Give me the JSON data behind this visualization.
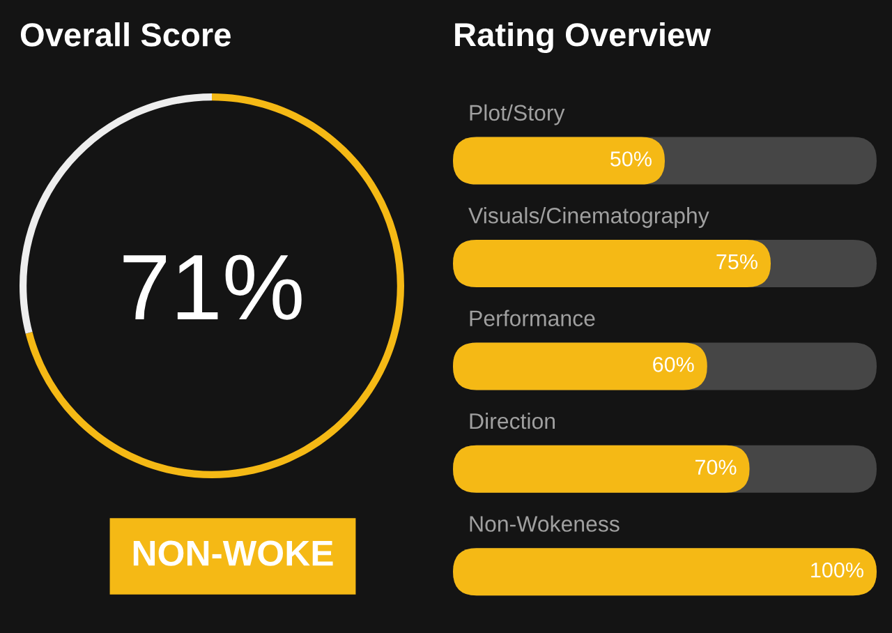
{
  "chart_data": [
    {
      "type": "donut",
      "title": "Overall Score",
      "categories": [
        null,
        null
      ],
      "values": [
        71,
        29
      ],
      "colors": [
        "#f5b915",
        "#eeeeee"
      ],
      "annotations": [
        "71%",
        "NON-WOKE"
      ]
    },
    {
      "type": "bar",
      "orientation": "horizontal",
      "title": "Rating Overview",
      "categories": [
        "Plot/Story",
        "Visuals/Cinematography",
        "Performance",
        "Direction",
        "Non-Wokeness"
      ],
      "values": [
        50,
        75,
        60,
        70,
        100
      ],
      "value_labels": [
        "50%",
        "75%",
        "60%",
        "70%",
        "100%"
      ],
      "color": "#f5b915",
      "xlim": [
        0,
        100
      ]
    }
  ]
}
